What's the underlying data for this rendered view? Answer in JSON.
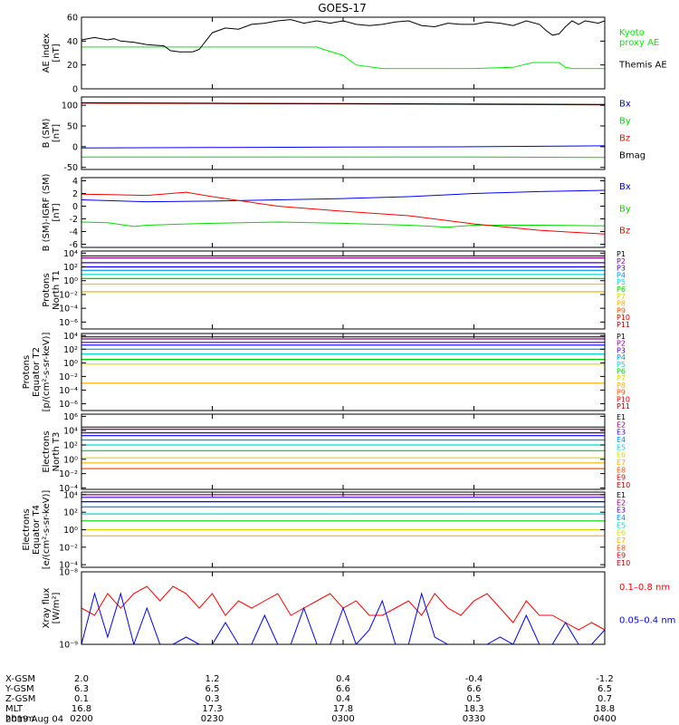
{
  "title": "GOES-17",
  "colors": {
    "black": "#000000",
    "red": "#ff0000",
    "green": "#00dd00",
    "blue": "#0000ff",
    "kyoto": "#00ee00",
    "channels": [
      "#000000",
      "#8b0085",
      "#3a00c8",
      "#0000ff",
      "#0090ff",
      "#00d8d8",
      "#00d000",
      "#d8d800",
      "#ffb000",
      "#ff5000",
      "#e00000",
      "#b00000"
    ]
  },
  "chart_data": [
    {
      "type": "line",
      "ylabel": "AE index\n[nT]",
      "ylim": [
        0,
        60
      ],
      "yticks": [
        "0",
        "20",
        "40",
        "60"
      ],
      "ytick_values": [
        0,
        20,
        40,
        60
      ],
      "legend": [
        {
          "label": "Kyoto\nproxy AE",
          "color": "#00ee00"
        },
        {
          "label": "Themis AE",
          "color": "#000000"
        }
      ],
      "series": [
        {
          "name": "Kyoto proxy AE",
          "color": "#00ee00",
          "x": [
            0,
            18,
            18.5,
            20,
            21,
            23,
            30,
            33,
            34.5,
            36.5,
            37,
            37.5,
            39,
            40
          ],
          "values": [
            35,
            35,
            33,
            28,
            20,
            17,
            17,
            18,
            22,
            22,
            18,
            17,
            17,
            17
          ]
        },
        {
          "name": "Themis AE",
          "color": "#000000",
          "x": [
            0,
            1,
            2,
            2.5,
            3,
            4,
            5,
            6.3,
            6.8,
            7.5,
            8.5,
            9,
            10,
            11,
            12,
            13,
            14,
            15,
            16,
            17,
            18,
            19,
            20,
            21,
            22,
            23,
            24,
            25,
            26,
            27,
            28,
            29,
            30,
            31,
            32,
            33,
            34,
            35,
            35.5,
            36,
            36.5,
            37,
            37.5,
            38,
            38.5,
            39,
            39.5,
            40
          ],
          "values": [
            41,
            43,
            41,
            42,
            40,
            39,
            37,
            36,
            32,
            31,
            31,
            33,
            47,
            51,
            50,
            54,
            55,
            57,
            58,
            55,
            57,
            55,
            57,
            54,
            53,
            54,
            56,
            57,
            53,
            52,
            55,
            54,
            54,
            56,
            55,
            53,
            57,
            54,
            49,
            45,
            46,
            52,
            57,
            54,
            57,
            56,
            55,
            57
          ]
        }
      ]
    },
    {
      "type": "line",
      "ylabel": "B (SM)\n[nT]",
      "ylim": [
        -55,
        120
      ],
      "yticks": [
        "-50",
        "0",
        "50",
        "100"
      ],
      "ytick_values": [
        -50,
        0,
        50,
        100
      ],
      "legend": [
        {
          "label": "Bx",
          "color": "#0000ff"
        },
        {
          "label": "By",
          "color": "#00dd00"
        },
        {
          "label": "Bz",
          "color": "#ff0000"
        },
        {
          "label": "Bmag",
          "color": "#000000"
        }
      ],
      "series": [
        {
          "name": "Bx",
          "color": "#0000ff",
          "x": [
            0,
            10,
            20,
            30,
            40
          ],
          "values": [
            -3,
            -2,
            -1,
            0,
            2
          ]
        },
        {
          "name": "By",
          "color": "#00dd00",
          "x": [
            0,
            10,
            20,
            30,
            40
          ],
          "values": [
            -25,
            -25,
            -25,
            -25,
            -26
          ]
        },
        {
          "name": "Bz",
          "color": "#ff0000",
          "x": [
            0,
            10,
            20,
            30,
            40
          ],
          "values": [
            105,
            104,
            103,
            102,
            101
          ]
        },
        {
          "name": "Bmag",
          "color": "#000000",
          "x": [
            0,
            10,
            20,
            30,
            40
          ],
          "values": [
            106,
            105,
            104,
            103,
            102
          ]
        }
      ]
    },
    {
      "type": "line",
      "ylabel": "B (SM)-IGRF (SM)\n[nT]",
      "ylim": [
        -6.5,
        4.5
      ],
      "yticks": [
        "-6",
        "-4",
        "-2",
        "0",
        "2",
        "4"
      ],
      "ytick_values": [
        -6,
        -4,
        -2,
        0,
        2,
        4
      ],
      "legend": [
        {
          "label": "Bx",
          "color": "#0000ff"
        },
        {
          "label": "By",
          "color": "#00dd00"
        },
        {
          "label": "Bz",
          "color": "#ff0000"
        }
      ],
      "series": [
        {
          "name": "Bx",
          "color": "#0000ff",
          "x": [
            0,
            5,
            10,
            15,
            20,
            25,
            30,
            35,
            40
          ],
          "values": [
            1.0,
            0.7,
            0.8,
            1.0,
            1.2,
            1.5,
            2.0,
            2.3,
            2.5
          ]
        },
        {
          "name": "By",
          "color": "#00dd00",
          "x": [
            0,
            2,
            4,
            5,
            8,
            10,
            15,
            20,
            25,
            28,
            30,
            35,
            40
          ],
          "values": [
            -2.5,
            -2.6,
            -3.2,
            -3.0,
            -2.8,
            -2.7,
            -2.5,
            -2.7,
            -3.0,
            -3.3,
            -3.0,
            -3.0,
            -3.1
          ]
        },
        {
          "name": "Bz",
          "color": "#ff0000",
          "x": [
            0,
            5,
            8,
            10,
            15,
            20,
            25,
            30,
            35,
            40
          ],
          "values": [
            1.9,
            1.7,
            2.2,
            1.5,
            0.0,
            -0.8,
            -1.5,
            -2.8,
            -3.8,
            -4.4
          ]
        }
      ]
    },
    {
      "type": "line",
      "ylabel": "Protons\nNorth T1",
      "ylim": [
        -7,
        4.3
      ],
      "yticks": [
        "10⁻⁶",
        "10⁻⁴",
        "10⁻²",
        "10⁰",
        "10²",
        "10⁴"
      ],
      "ytick_values": [
        -6,
        -4,
        -2,
        0,
        2,
        4
      ],
      "legend": [
        {
          "label": "P1",
          "color": "#000000"
        },
        {
          "label": "P2",
          "color": "#8b0085"
        },
        {
          "label": "P3",
          "color": "#3a00c8"
        },
        {
          "label": "P4",
          "color": "#0090ff"
        },
        {
          "label": "P5",
          "color": "#00d8d8"
        },
        {
          "label": "P6",
          "color": "#00d000"
        },
        {
          "label": "P7",
          "color": "#d8d800"
        },
        {
          "label": "P8",
          "color": "#ffb000"
        },
        {
          "label": "P9",
          "color": "#ff5000"
        },
        {
          "label": "P10",
          "color": "#e00000"
        },
        {
          "label": "P11",
          "color": "#b00000"
        }
      ],
      "levels": [
        3.3,
        2.6,
        2.0,
        1.5,
        0.9,
        0.3,
        -0.5,
        -1.6
      ]
    },
    {
      "type": "line",
      "ylabel": "Protons\nEquator T2\n[p/(cm²-s-sr-keV)]",
      "ylim": [
        -7,
        4.3
      ],
      "yticks": [
        "10⁻⁶",
        "10⁻⁴",
        "10⁻²",
        "10⁰",
        "10²",
        "10⁴"
      ],
      "ytick_values": [
        -6,
        -4,
        -2,
        0,
        2,
        4
      ],
      "legend": [
        {
          "label": "P1",
          "color": "#000000"
        },
        {
          "label": "P2",
          "color": "#8b0085"
        },
        {
          "label": "P3",
          "color": "#3a00c8"
        },
        {
          "label": "P4",
          "color": "#0090ff"
        },
        {
          "label": "P5",
          "color": "#00d8d8"
        },
        {
          "label": "P6",
          "color": "#00d000"
        },
        {
          "label": "P7",
          "color": "#d8d800"
        },
        {
          "label": "P8",
          "color": "#ffb000"
        },
        {
          "label": "P9",
          "color": "#ff5000"
        },
        {
          "label": "P10",
          "color": "#e00000"
        },
        {
          "label": "P11",
          "color": "#b00000"
        }
      ],
      "levels": [
        3.5,
        3.0,
        2.6,
        2.0,
        1.3,
        0.5,
        -0.2,
        -3.0
      ]
    },
    {
      "type": "line",
      "ylabel": "Electrons\nNorth T3",
      "ylim": [
        -4.2,
        6.3
      ],
      "yticks": [
        "10⁻⁴",
        "10⁻²",
        "10⁰",
        "10²",
        "10⁴",
        "10⁶"
      ],
      "ytick_values": [
        -4,
        -2,
        0,
        2,
        4,
        6
      ],
      "legend": [
        {
          "label": "E1",
          "color": "#000000"
        },
        {
          "label": "E2",
          "color": "#8b0085"
        },
        {
          "label": "E3",
          "color": "#3a00c8"
        },
        {
          "label": "E4",
          "color": "#0090ff"
        },
        {
          "label": "E5",
          "color": "#00d8d8"
        },
        {
          "label": "E6",
          "color": "#d8d800"
        },
        {
          "label": "E7",
          "color": "#ffb000"
        },
        {
          "label": "E8",
          "color": "#ff5000"
        },
        {
          "label": "E9",
          "color": "#e00000"
        },
        {
          "label": "E10",
          "color": "#b00000"
        }
      ],
      "levels": [
        4.2,
        3.7,
        3.3,
        2.7,
        2.0,
        1.2,
        0.2,
        -0.5,
        -1.3
      ]
    },
    {
      "type": "line",
      "ylabel": "Electrons\nEquator T4\n[e/(cm²-s-sr-keV)]",
      "ylim": [
        -4.3,
        4.3
      ],
      "yticks": [
        "10⁻⁴",
        "10⁻²",
        "10⁰",
        "10²",
        "10⁴"
      ],
      "ytick_values": [
        -4,
        -2,
        0,
        2,
        4
      ],
      "legend": [
        {
          "label": "E1",
          "color": "#000000"
        },
        {
          "label": "E2",
          "color": "#8b0085"
        },
        {
          "label": "E3",
          "color": "#3a00c8"
        },
        {
          "label": "E4",
          "color": "#0090ff"
        },
        {
          "label": "E5",
          "color": "#00d8d8"
        },
        {
          "label": "E6",
          "color": "#d8d800"
        },
        {
          "label": "E7",
          "color": "#ffb000"
        },
        {
          "label": "E8",
          "color": "#ff5000"
        },
        {
          "label": "E9",
          "color": "#e00000"
        },
        {
          "label": "E10",
          "color": "#b00000"
        }
      ],
      "levels": [
        4.0,
        3.7,
        3.2,
        2.6,
        1.8,
        1.0,
        0.0,
        -0.7
      ]
    },
    {
      "type": "line",
      "ylabel": "Xray flux\n[W/m²]",
      "ylim": [
        -9,
        -8
      ],
      "yticks": [
        "10⁻⁹",
        "10⁻⁸"
      ],
      "ytick_values": [
        -9,
        -8
      ],
      "legend": [
        {
          "label": "0.1–0.8 nm",
          "color": "#ff0000"
        },
        {
          "label": "0.05–0.4 nm",
          "color": "#0000ff"
        }
      ],
      "series": [
        {
          "name": "0.1–0.8 nm",
          "color": "#ff0000",
          "x": [
            0,
            1,
            2,
            3,
            4,
            5,
            6,
            7,
            8,
            9,
            10,
            11,
            12,
            13,
            14,
            15,
            16,
            17,
            18,
            19,
            20,
            21,
            22,
            23,
            24,
            25,
            26,
            27,
            28,
            29,
            30,
            31,
            32,
            33,
            34,
            35,
            36,
            37,
            38,
            39,
            40
          ],
          "values": [
            -8.5,
            -8.6,
            -8.3,
            -8.5,
            -8.3,
            -8.2,
            -8.4,
            -8.2,
            -8.3,
            -8.5,
            -8.3,
            -8.6,
            -8.4,
            -8.5,
            -8.4,
            -8.3,
            -8.6,
            -8.5,
            -8.4,
            -8.3,
            -8.5,
            -8.4,
            -8.6,
            -8.6,
            -8.5,
            -8.4,
            -8.6,
            -8.3,
            -8.5,
            -8.6,
            -8.4,
            -8.3,
            -8.5,
            -8.7,
            -8.4,
            -8.6,
            -8.6,
            -8.7,
            -8.8,
            -8.7,
            -8.8
          ]
        },
        {
          "name": "0.05–0.4 nm",
          "color": "#0000ff",
          "x": [
            0,
            1,
            2,
            3,
            4,
            5,
            6,
            7,
            8,
            9,
            10,
            11,
            12,
            13,
            14,
            15,
            16,
            17,
            18,
            19,
            20,
            21,
            22,
            23,
            24,
            25,
            26,
            27,
            28,
            29,
            30,
            31,
            32,
            33,
            34,
            35,
            36,
            37,
            38,
            39,
            40
          ],
          "values": [
            -9.0,
            -8.3,
            -8.9,
            -8.3,
            -9.0,
            -8.5,
            -9.0,
            -9.0,
            -8.9,
            -9.0,
            -9.0,
            -8.7,
            -9.0,
            -9.0,
            -8.6,
            -9.0,
            -9.0,
            -8.5,
            -9.0,
            -9.0,
            -8.5,
            -9.0,
            -8.8,
            -8.4,
            -9.0,
            -9.0,
            -8.3,
            -8.9,
            -9.0,
            -9.0,
            -9.0,
            -9.0,
            -8.9,
            -9.0,
            -8.6,
            -9.0,
            -9.0,
            -8.7,
            -9.0,
            -9.0,
            -8.8
          ]
        }
      ]
    }
  ],
  "x_axis": {
    "xlim": [
      0,
      40
    ],
    "major_x": [
      0,
      10,
      20,
      30,
      40
    ],
    "row_labels": [
      "X-GSM",
      "Y-GSM",
      "Z-GSM",
      "MLT",
      "hhmm",
      "2019 Aug 04"
    ],
    "columns": [
      [
        "2.0",
        "6.3",
        "0.1",
        "16.8",
        "0200"
      ],
      [
        "1.2",
        "6.5",
        "0.3",
        "17.3",
        "0230"
      ],
      [
        "0.4",
        "6.6",
        "0.4",
        "17.8",
        "0300"
      ],
      [
        "-0.4",
        "6.6",
        "0.5",
        "18.3",
        "0330"
      ],
      [
        "-1.2",
        "6.5",
        "0.7",
        "18.8",
        "0400"
      ]
    ]
  }
}
